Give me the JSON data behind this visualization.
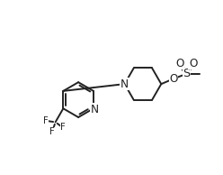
{
  "bg_color": "#ffffff",
  "line_color": "#222222",
  "line_width": 1.4,
  "font_size": 7.2,
  "fig_width": 2.48,
  "fig_height": 1.94,
  "dpi": 100,
  "xlim": [
    -1,
    11
  ],
  "ylim": [
    -1,
    9
  ]
}
